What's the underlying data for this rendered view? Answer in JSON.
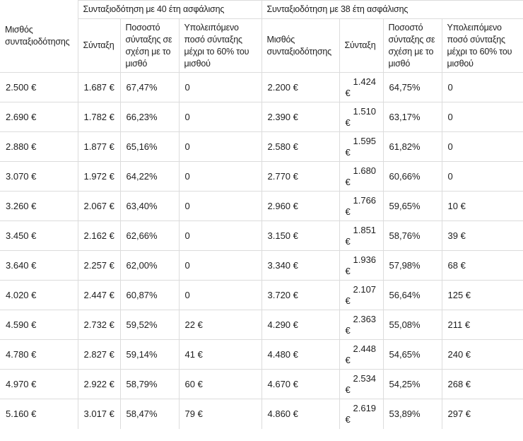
{
  "colors": {
    "background": "#ffffff",
    "border": "#dcdcdc",
    "text": "#1e1e1e"
  },
  "chart_data": {
    "type": "table",
    "group_headers": [
      "Συνταξιοδότηση με 40 έτη ασφάλισης",
      "Συνταξιοδότηση με 38 έτη ασφάλισης"
    ],
    "column_headers": {
      "salary": "Μισθός συνταξιοδότησης",
      "pension": "Σύνταξη",
      "percent": "Ποσοστό σύνταξης σε σχέση με το μισθό",
      "remaining": "Υπολειπόμενο ποσό σύνταξης μέχρι το 60% του μισθού"
    },
    "rows": [
      {
        "salary40": "2.500 €",
        "pension40": "1.687 €",
        "percent40": "67,47%",
        "remaining40": "0",
        "salary38": "2.200 €",
        "pension38": "1.424 €",
        "percent38": "64,75%",
        "remaining38": "0"
      },
      {
        "salary40": "2.690 €",
        "pension40": "1.782 €",
        "percent40": "66,23%",
        "remaining40": "0",
        "salary38": "2.390 €",
        "pension38": "1.510 €",
        "percent38": "63,17%",
        "remaining38": "0"
      },
      {
        "salary40": "2.880 €",
        "pension40": "1.877 €",
        "percent40": "65,16%",
        "remaining40": "0",
        "salary38": "2.580 €",
        "pension38": "1.595 €",
        "percent38": "61,82%",
        "remaining38": "0"
      },
      {
        "salary40": "3.070 €",
        "pension40": "1.972 €",
        "percent40": "64,22%",
        "remaining40": "0",
        "salary38": "2.770 €",
        "pension38": "1.680 €",
        "percent38": "60,66%",
        "remaining38": "0"
      },
      {
        "salary40": "3.260 €",
        "pension40": "2.067 €",
        "percent40": "63,40%",
        "remaining40": "0",
        "salary38": "2.960 €",
        "pension38": "1.766 €",
        "percent38": "59,65%",
        "remaining38": "10 €"
      },
      {
        "salary40": "3.450 €",
        "pension40": "2.162 €",
        "percent40": "62,66%",
        "remaining40": "0",
        "salary38": "3.150 €",
        "pension38": "1.851 €",
        "percent38": "58,76%",
        "remaining38": "39 €"
      },
      {
        "salary40": "3.640 €",
        "pension40": "2.257 €",
        "percent40": "62,00%",
        "remaining40": "0",
        "salary38": "3.340 €",
        "pension38": "1.936 €",
        "percent38": "57,98%",
        "remaining38": "68 €"
      },
      {
        "salary40": "4.020 €",
        "pension40": "2.447 €",
        "percent40": "60,87%",
        "remaining40": "0",
        "salary38": "3.720 €",
        "pension38": "2.107 €",
        "percent38": "56,64%",
        "remaining38": "125 €"
      },
      {
        "salary40": "4.590 €",
        "pension40": "2.732 €",
        "percent40": "59,52%",
        "remaining40": "22 €",
        "salary38": "4.290 €",
        "pension38": "2.363 €",
        "percent38": "55,08%",
        "remaining38": "211 €"
      },
      {
        "salary40": "4.780 €",
        "pension40": "2.827 €",
        "percent40": "59,14%",
        "remaining40": "41 €",
        "salary38": "4.480 €",
        "pension38": "2.448 €",
        "percent38": "54,65%",
        "remaining38": "240 €"
      },
      {
        "salary40": "4.970 €",
        "pension40": "2.922 €",
        "percent40": "58,79%",
        "remaining40": "60 €",
        "salary38": "4.670 €",
        "pension38": "2.534 €",
        "percent38": "54,25%",
        "remaining38": "268 €"
      },
      {
        "salary40": "5.160 €",
        "pension40": "3.017 €",
        "percent40": "58,47%",
        "remaining40": "79 €",
        "salary38": "4.860 €",
        "pension38": "2.619 €",
        "percent38": "53,89%",
        "remaining38": "297 €"
      }
    ]
  }
}
